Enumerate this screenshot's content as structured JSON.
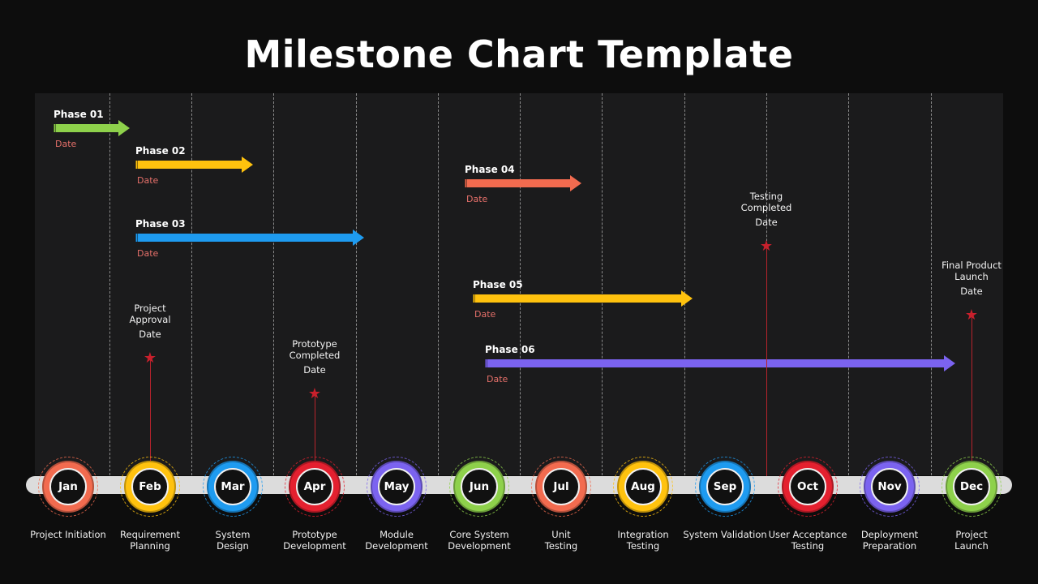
{
  "title": "Milestone Chart Template",
  "colors": {
    "green": "#8ed14b",
    "yellow": "#ffc20e",
    "blue": "#1e9bf0",
    "orange": "#f26b4f",
    "purple": "#7b63f0",
    "red": "#e4202f",
    "date_text": "#e6706a",
    "milestone_red": "#c8202c"
  },
  "phases": [
    {
      "label": "Phase 01",
      "date": "Date",
      "color": "green",
      "start_month": 0,
      "end_month": 0.75
    },
    {
      "label": "Phase 02",
      "date": "Date",
      "color": "yellow",
      "start_month": 1,
      "end_month": 2.25
    },
    {
      "label": "Phase 03",
      "date": "Date",
      "color": "blue",
      "start_month": 1,
      "end_month": 3.6
    },
    {
      "label": "Phase 04",
      "date": "Date",
      "color": "orange",
      "start_month": 5,
      "end_month": 6.25
    },
    {
      "label": "Phase 05",
      "date": "Date",
      "color": "yellow",
      "start_month": 5.1,
      "end_month": 7.6
    },
    {
      "label": "Phase 06",
      "date": "Date",
      "color": "purple",
      "start_month": 5.25,
      "end_month": 10.8
    }
  ],
  "milestones": [
    {
      "text_lines": [
        "Project",
        "Approval"
      ],
      "date": "Date",
      "month": 1
    },
    {
      "text_lines": [
        "Prototype",
        "Completed"
      ],
      "date": "Date",
      "month": 3
    },
    {
      "text_lines": [
        "Testing",
        "Completed"
      ],
      "date": "Date",
      "month": 8.5
    },
    {
      "text_lines": [
        "Final Product",
        "Launch"
      ],
      "date": "Date",
      "month": 11
    }
  ],
  "months": [
    {
      "label": "Jan",
      "color": "orange",
      "desc": [
        "Project Initiation"
      ]
    },
    {
      "label": "Feb",
      "color": "yellow",
      "desc": [
        "Requirement",
        "Planning"
      ]
    },
    {
      "label": "Mar",
      "color": "blue",
      "desc": [
        "System",
        "Design"
      ]
    },
    {
      "label": "Apr",
      "color": "red",
      "desc": [
        "Prototype",
        "Development"
      ]
    },
    {
      "label": "May",
      "color": "purple",
      "desc": [
        "Module",
        "Development"
      ]
    },
    {
      "label": "Jun",
      "color": "green",
      "desc": [
        "Core System",
        "Development"
      ]
    },
    {
      "label": "Jul",
      "color": "orange",
      "desc": [
        "Unit",
        "Testing"
      ]
    },
    {
      "label": "Aug",
      "color": "yellow",
      "desc": [
        "Integration",
        "Testing"
      ]
    },
    {
      "label": "Sep",
      "color": "blue",
      "desc": [
        "System Validation"
      ]
    },
    {
      "label": "Oct",
      "color": "red",
      "desc": [
        "User Acceptance",
        "Testing"
      ]
    },
    {
      "label": "Nov",
      "color": "purple",
      "desc": [
        "Deployment",
        "Preparation"
      ]
    },
    {
      "label": "Dec",
      "color": "green",
      "desc": [
        "Project",
        "Launch"
      ]
    }
  ]
}
